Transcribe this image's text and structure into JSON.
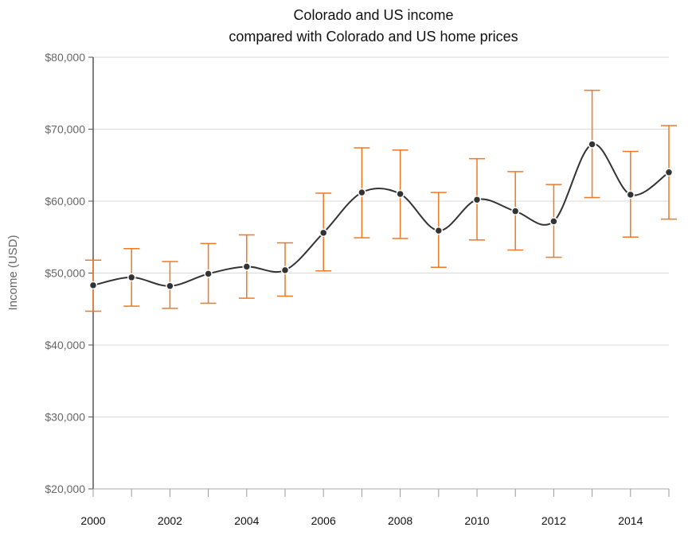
{
  "chart_data": {
    "type": "line",
    "title": [
      "Colorado and US income",
      "compared with Colorado and US home prices"
    ],
    "xlabel": "",
    "ylabel": "Income (USD)",
    "xlim": [
      2000,
      2015
    ],
    "ylim": [
      20000,
      80000
    ],
    "x_ticks": [
      2000,
      2002,
      2004,
      2006,
      2008,
      2010,
      2012,
      2014
    ],
    "x_tick_labels": [
      "2000",
      "2002",
      "2004",
      "2006",
      "2008",
      "2010",
      "2012",
      "2014"
    ],
    "y_ticks": [
      20000,
      30000,
      40000,
      50000,
      60000,
      70000,
      80000
    ],
    "y_tick_labels": [
      "$20,000",
      "$30,000",
      "$40,000",
      "$50,000",
      "$60,000",
      "$70,000",
      "$80,000"
    ],
    "grid": "horizontal",
    "colors": {
      "line": "#333333",
      "error_bar": "#f07820",
      "grid": "#d9d9d9",
      "axis": "#555555",
      "marker_stroke": "#ffffff"
    },
    "series": [
      {
        "x": [
          2000,
          2001,
          2002,
          2003,
          2004,
          2005,
          2006,
          2007,
          2008,
          2009,
          2010,
          2011,
          2012,
          2013,
          2014,
          2015
        ],
        "y": [
          48300,
          49400,
          48200,
          49900,
          50900,
          50400,
          55600,
          61200,
          61000,
          55900,
          60200,
          58600,
          57200,
          67900,
          60900,
          64000
        ],
        "error_low": [
          44700,
          45400,
          45100,
          45800,
          46500,
          46800,
          50300,
          54900,
          54800,
          50800,
          54600,
          53200,
          52200,
          60500,
          55000,
          57500
        ],
        "error_high": [
          51800,
          53400,
          51600,
          54100,
          55300,
          54200,
          61100,
          67400,
          67100,
          61200,
          65900,
          64100,
          62300,
          75400,
          66900,
          70500
        ]
      }
    ]
  }
}
